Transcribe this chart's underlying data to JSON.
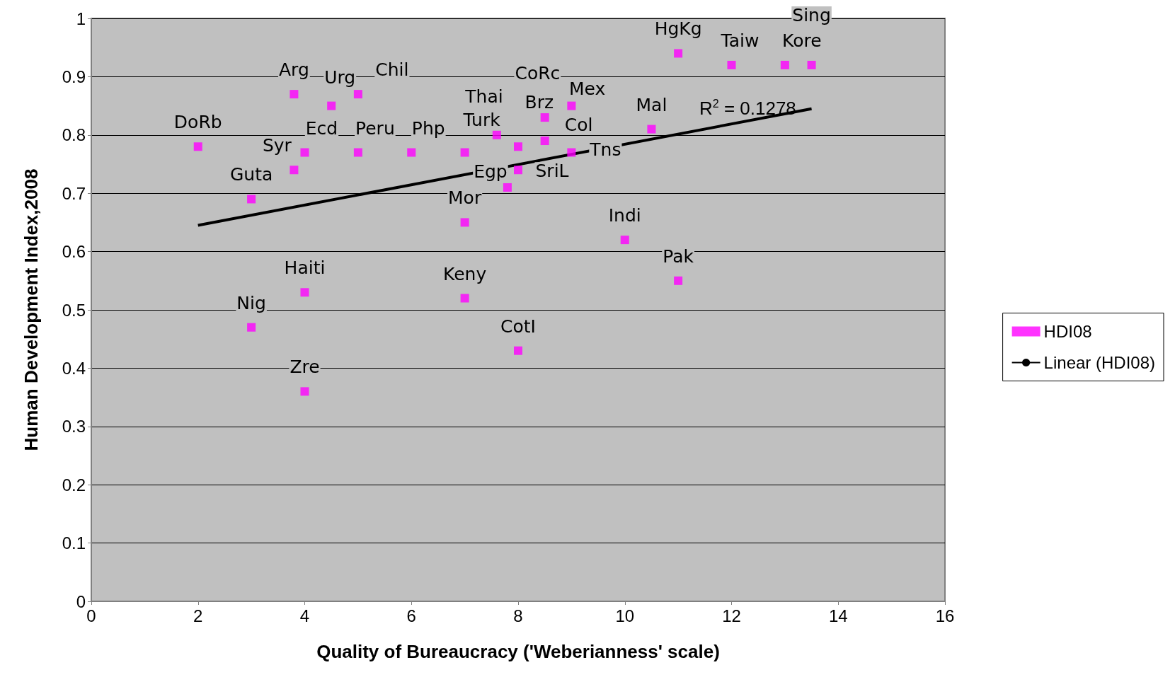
{
  "chart_data": {
    "type": "scatter",
    "xlabel": "Quality of Bureaucracy ('Weberianness' scale)",
    "ylabel": "Human Development Index,2008",
    "xlim": [
      0,
      16
    ],
    "xticks": [
      0,
      2,
      4,
      6,
      8,
      10,
      12,
      14,
      16
    ],
    "ylim": [
      0,
      1
    ],
    "yticks": [
      0,
      0.1,
      0.2,
      0.3,
      0.4,
      0.5,
      0.6,
      0.7,
      0.8,
      0.9,
      1
    ],
    "grid": "y",
    "legend": "right",
    "marker": "square",
    "series": [
      {
        "name": "HDI08",
        "color": "#ff00ff",
        "x": [
          2,
          3,
          3,
          3.8,
          3.8,
          4,
          4,
          4,
          4.5,
          5,
          5,
          6,
          7,
          7,
          7,
          7.6,
          7.8,
          8,
          8,
          8,
          8.5,
          8.5,
          9,
          9,
          10.5,
          10,
          11,
          11,
          12,
          13,
          13.5
        ],
        "values": [
          0.78,
          0.69,
          0.47,
          0.74,
          0.87,
          0.77,
          0.53,
          0.36,
          0.85,
          0.87,
          0.77,
          0.77,
          0.77,
          0.65,
          0.52,
          0.8,
          0.71,
          0.78,
          0.74,
          0.43,
          0.83,
          0.79,
          0.85,
          0.77,
          0.81,
          0.62,
          0.55,
          0.94,
          0.92,
          0.92,
          0.92
        ]
      },
      {
        "name": "Linear (HDI08)",
        "type": "line",
        "color": "#000000",
        "marker": "none",
        "line_style": "solid",
        "x": [
          2,
          13.5
        ],
        "values": [
          0.645,
          0.845
        ]
      }
    ],
    "annotations": [
      {
        "text": "DoRb",
        "x": 2,
        "y": 0.78
      },
      {
        "text": "Guta",
        "x": 3,
        "y": 0.69
      },
      {
        "text": "Nig",
        "x": 3,
        "y": 0.47
      },
      {
        "text": "Syr",
        "x": 3.8,
        "y": 0.74
      },
      {
        "text": "Arg",
        "x": 3.8,
        "y": 0.87
      },
      {
        "text": "Ecd",
        "x": 4,
        "y": 0.77
      },
      {
        "text": "Haiti",
        "x": 4,
        "y": 0.53
      },
      {
        "text": "Zre",
        "x": 4,
        "y": 0.36
      },
      {
        "text": "Urg",
        "x": 4.5,
        "y": 0.85
      },
      {
        "text": "Chil",
        "x": 5,
        "y": 0.87
      },
      {
        "text": "Peru",
        "x": 5,
        "y": 0.77
      },
      {
        "text": "Php",
        "x": 6,
        "y": 0.77
      },
      {
        "text": "Turk",
        "x": 7,
        "y": 0.77
      },
      {
        "text": "Mor",
        "x": 7,
        "y": 0.65
      },
      {
        "text": "Keny",
        "x": 7,
        "y": 0.52
      },
      {
        "text": "Brz",
        "x": 7.6,
        "y": 0.8
      },
      {
        "text": "Egp",
        "x": 7.8,
        "y": 0.71
      },
      {
        "text": "Thai",
        "x": 8,
        "y": 0.78
      },
      {
        "text": "SriL",
        "x": 8,
        "y": 0.74
      },
      {
        "text": "CotI",
        "x": 8,
        "y": 0.43
      },
      {
        "text": "Mex",
        "x": 8.5,
        "y": 0.83
      },
      {
        "text": "Col",
        "x": 8.5,
        "y": 0.79
      },
      {
        "text": "CoRc",
        "x": 9,
        "y": 0.85
      },
      {
        "text": "Tns",
        "x": 9,
        "y": 0.77
      },
      {
        "text": "Mal",
        "x": 10.5,
        "y": 0.81
      },
      {
        "text": "Indi",
        "x": 10,
        "y": 0.62
      },
      {
        "text": "Pak",
        "x": 11,
        "y": 0.55
      },
      {
        "text": "HgKg",
        "x": 11,
        "y": 0.94
      },
      {
        "text": "Taiw",
        "x": 12,
        "y": 0.92
      },
      {
        "text": "Kore",
        "x": 13,
        "y": 0.92
      },
      {
        "text": "Sing",
        "x": 13.5,
        "y": 0.92
      },
      "R$^{2}$ = 0.1278"
    ]
  }
}
